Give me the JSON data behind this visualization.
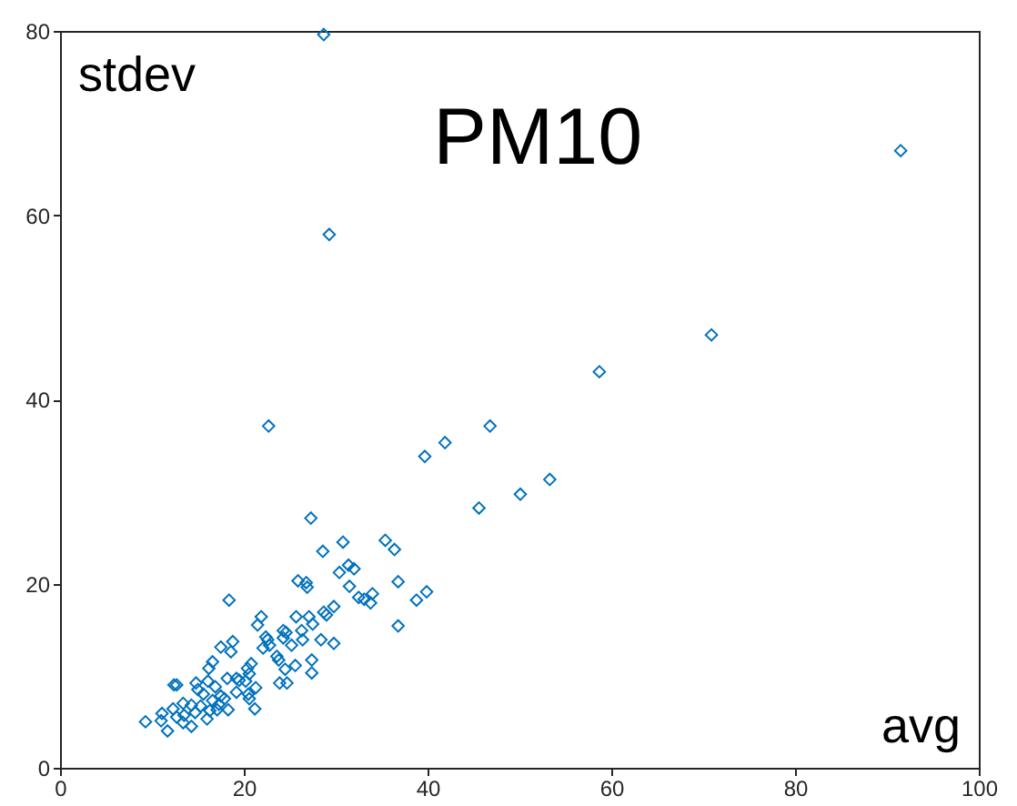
{
  "chart_data": {
    "type": "scatter",
    "title": "PM10",
    "xlabel": "avg",
    "ylabel": "stdev",
    "marker": "diamond",
    "grid": false,
    "xlim": [
      0,
      100
    ],
    "xticks": [
      0,
      20,
      40,
      60,
      80,
      100
    ],
    "ylim": [
      0,
      80
    ],
    "yticks": [
      0,
      20,
      40,
      60,
      80
    ],
    "series": [
      {
        "color": "#0072bd",
        "x": [
          28.7,
          91.5,
          29.3,
          70.9,
          58.7,
          22.7,
          46.8,
          41.9,
          39.7,
          53.3,
          50.1,
          45.6,
          27.3,
          30.8,
          35.4,
          36.4,
          28.6,
          30.4,
          31.4,
          32.0,
          31.5,
          25.9,
          26.8,
          26.9,
          36.8,
          39.9,
          38.8,
          34.0,
          33.1,
          32.5,
          33.8,
          29.8,
          28.7,
          29.0,
          36.8,
          18.4,
          21.9,
          21.5,
          25.7,
          27.1,
          27.5,
          24.3,
          24.6,
          26.3,
          22.4,
          22.6,
          24.3,
          26.4,
          28.4,
          29.8,
          25.2,
          22.1,
          22.8,
          18.8,
          17.5,
          18.6,
          23.6,
          23.8,
          25.6,
          27.4,
          27.4,
          24.5,
          16.6,
          16.2,
          20.8,
          20.4,
          20.6,
          23.9,
          24.7,
          19.2,
          19.5,
          20.2,
          18.2,
          12.4,
          12.7,
          14.8,
          16.1,
          16.9,
          15.0,
          21.3,
          19.2,
          20.6,
          20.5,
          15.6,
          17.5,
          17.9,
          16.6,
          13.4,
          14.3,
          15.3,
          17.3,
          18.3,
          21.2,
          17.1,
          16.3,
          12.3,
          11.1,
          12.7,
          13.5,
          14.7,
          16.0,
          11.0,
          9.3,
          13.4,
          14.3,
          11.7
        ],
        "values": [
          79.6,
          67.0,
          57.9,
          47.0,
          43.0,
          37.1,
          37.1,
          35.3,
          33.8,
          31.3,
          29.7,
          28.2,
          27.1,
          24.5,
          24.7,
          23.7,
          23.5,
          21.2,
          22.0,
          21.6,
          19.7,
          20.3,
          20.1,
          19.6,
          20.2,
          19.1,
          18.2,
          18.9,
          18.3,
          18.5,
          17.9,
          17.5,
          16.9,
          16.6,
          15.4,
          18.2,
          16.4,
          15.5,
          16.4,
          16.4,
          15.6,
          14.9,
          14.7,
          14.9,
          14.2,
          13.9,
          14.1,
          13.9,
          13.9,
          13.5,
          13.3,
          13.0,
          13.3,
          13.7,
          13.1,
          12.6,
          12.1,
          11.7,
          11.1,
          11.7,
          10.3,
          10.7,
          11.5,
          10.8,
          11.3,
          10.8,
          10.2,
          9.2,
          9.2,
          9.7,
          9.5,
          9.4,
          9.7,
          9.0,
          9.0,
          9.2,
          9.4,
          8.8,
          8.5,
          8.7,
          8.2,
          7.5,
          8.0,
          8.0,
          7.8,
          7.5,
          7.3,
          7.0,
          6.8,
          6.7,
          6.9,
          6.3,
          6.4,
          6.3,
          6.2,
          6.4,
          5.9,
          5.5,
          5.7,
          6.0,
          5.3,
          5.1,
          5.0,
          4.9,
          4.5,
          4.0
        ]
      }
    ]
  }
}
